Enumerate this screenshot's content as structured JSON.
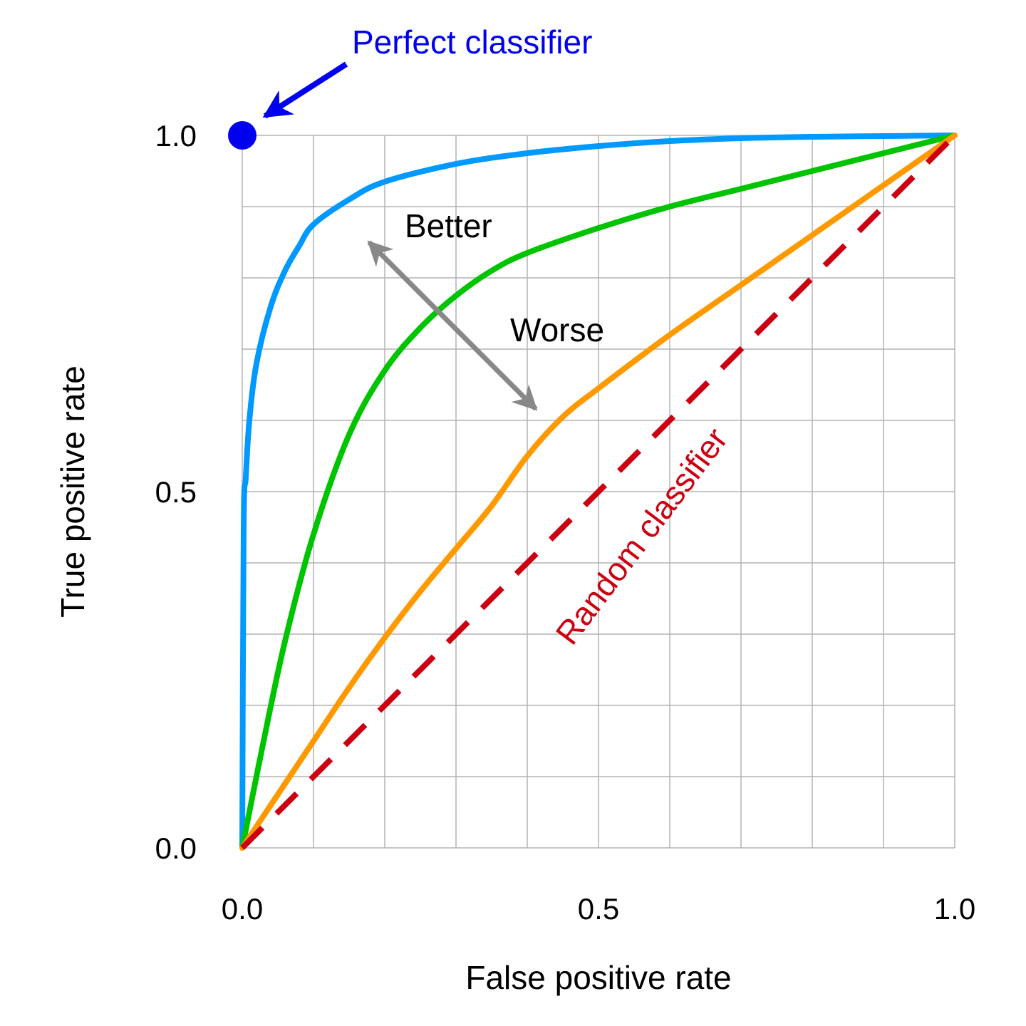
{
  "chart_data": {
    "type": "line",
    "title": "",
    "xlabel": "False positive rate",
    "ylabel": "True positive rate",
    "xlim": [
      0,
      1
    ],
    "ylim": [
      0,
      1
    ],
    "grid": true,
    "grid_step": 0.1,
    "x_ticks": [
      {
        "value": 0.0,
        "label": "0.0"
      },
      {
        "value": 0.5,
        "label": "0.5"
      },
      {
        "value": 1.0,
        "label": "1.0"
      }
    ],
    "y_ticks": [
      {
        "value": 0.0,
        "label": "0.0"
      },
      {
        "value": 0.5,
        "label": "0.5"
      },
      {
        "value": 1.0,
        "label": "1.0"
      }
    ],
    "series": [
      {
        "color": "#0099ff",
        "style": "solid",
        "x": [
          0,
          0.002,
          0.005,
          0.01,
          0.02,
          0.04,
          0.06,
          0.08,
          0.1,
          0.15,
          0.2,
          0.3,
          0.4,
          0.5,
          0.6,
          0.7,
          0.8,
          0.9,
          1.0
        ],
        "y": [
          0,
          0.45,
          0.52,
          0.6,
          0.68,
          0.76,
          0.81,
          0.845,
          0.875,
          0.91,
          0.935,
          0.96,
          0.975,
          0.985,
          0.992,
          0.996,
          0.998,
          0.999,
          1.0
        ]
      },
      {
        "color": "#00c400",
        "style": "solid",
        "x": [
          0,
          0.03,
          0.06,
          0.1,
          0.15,
          0.2,
          0.25,
          0.3,
          0.35,
          0.4,
          0.5,
          0.6,
          0.7,
          0.8,
          0.9,
          1.0
        ],
        "y": [
          0,
          0.15,
          0.29,
          0.44,
          0.58,
          0.67,
          0.73,
          0.775,
          0.81,
          0.835,
          0.87,
          0.9,
          0.925,
          0.95,
          0.975,
          1.0
        ]
      },
      {
        "color": "#ff9900",
        "style": "solid",
        "x": [
          0,
          0.05,
          0.1,
          0.15,
          0.2,
          0.25,
          0.3,
          0.35,
          0.4,
          0.45,
          0.5,
          0.6,
          0.7,
          0.8,
          0.9,
          1.0
        ],
        "y": [
          0,
          0.075,
          0.15,
          0.225,
          0.295,
          0.36,
          0.42,
          0.48,
          0.55,
          0.605,
          0.645,
          0.72,
          0.79,
          0.86,
          0.93,
          1.0
        ]
      },
      {
        "color": "#cc0011",
        "style": "dashed",
        "x": [
          0,
          1
        ],
        "y": [
          0,
          1
        ]
      }
    ],
    "points": [
      {
        "x": 0,
        "y": 1,
        "color": "#0000ee"
      }
    ],
    "annotations": {
      "perfect_classifier": "Perfect classifier",
      "random_classifier": "Random classifier",
      "better": "Better",
      "worse": "Worse"
    },
    "colors": {
      "perfect": "#0000ee",
      "random": "#cc0011",
      "arrow": "#888888",
      "grid": "#b3b3b3"
    }
  }
}
